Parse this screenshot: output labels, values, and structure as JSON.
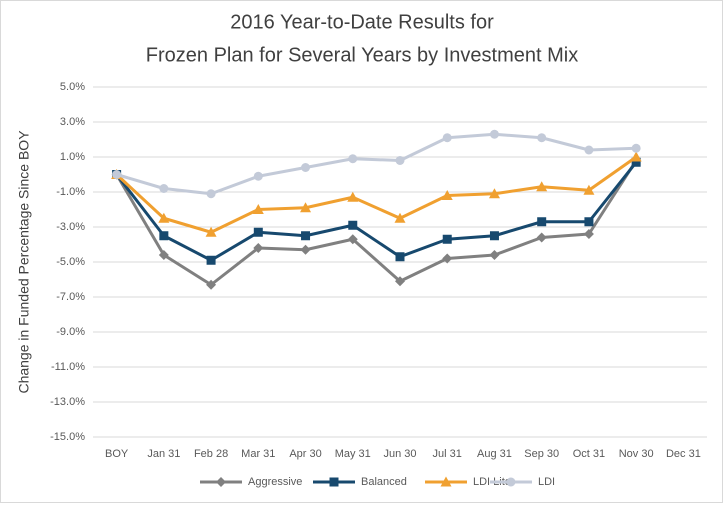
{
  "chart_data": {
    "type": "line",
    "title": [
      "2016 Year-to-Date Results for",
      "Frozen Plan for Several Years by Investment Mix"
    ],
    "y_label": "Change in Funded Percentage Since BOY",
    "categories": [
      "BOY",
      "Jan 31",
      "Feb 28",
      "Mar 31",
      "Apr 30",
      "May 31",
      "Jun 30",
      "Jul 31",
      "Aug 31",
      "Sep 30",
      "Oct 31",
      "Nov 30",
      "Dec 31"
    ],
    "series": [
      {
        "name": "Aggressive",
        "color": "#808080",
        "marker": "diamond",
        "values": [
          0,
          -4.6,
          -6.3,
          -4.2,
          -4.3,
          -3.7,
          -6.1,
          -4.8,
          -4.6,
          -3.6,
          -3.4,
          0.8,
          null
        ]
      },
      {
        "name": "Balanced",
        "color": "#17496e",
        "marker": "square",
        "values": [
          0,
          -3.5,
          -4.9,
          -3.3,
          -3.5,
          -2.9,
          -4.7,
          -3.7,
          -3.5,
          -2.7,
          -2.7,
          0.7,
          null
        ]
      },
      {
        "name": "LDI Lite",
        "color": "#f0a030",
        "marker": "triangle",
        "values": [
          0,
          -2.5,
          -3.3,
          -2.0,
          -1.9,
          -1.3,
          -2.5,
          -1.2,
          -1.1,
          -0.7,
          -0.9,
          1.0,
          null
        ]
      },
      {
        "name": "LDI",
        "color": "#c3cad8",
        "marker": "circle",
        "values": [
          0,
          -0.8,
          -1.1,
          -0.1,
          0.4,
          0.9,
          0.8,
          2.1,
          2.3,
          2.1,
          1.4,
          1.5,
          null
        ]
      }
    ],
    "ylim": [
      -15,
      5
    ],
    "yticks": [
      {
        "value": -15,
        "label": "-15.0%"
      },
      {
        "value": -13,
        "label": "-13.0%"
      },
      {
        "value": -11,
        "label": "-11.0%"
      },
      {
        "value": -9,
        "label": "-9.0%"
      },
      {
        "value": -7,
        "label": "-7.0%"
      },
      {
        "value": -5,
        "label": "-5.0%"
      },
      {
        "value": -3,
        "label": "-3.0%"
      },
      {
        "value": -1,
        "label": "-1.0%"
      },
      {
        "value": 1,
        "label": "1.0%"
      },
      {
        "value": 3,
        "label": "3.0%"
      },
      {
        "value": 5,
        "label": "5.0%"
      }
    ],
    "grid": true,
    "legend": "bottom"
  }
}
